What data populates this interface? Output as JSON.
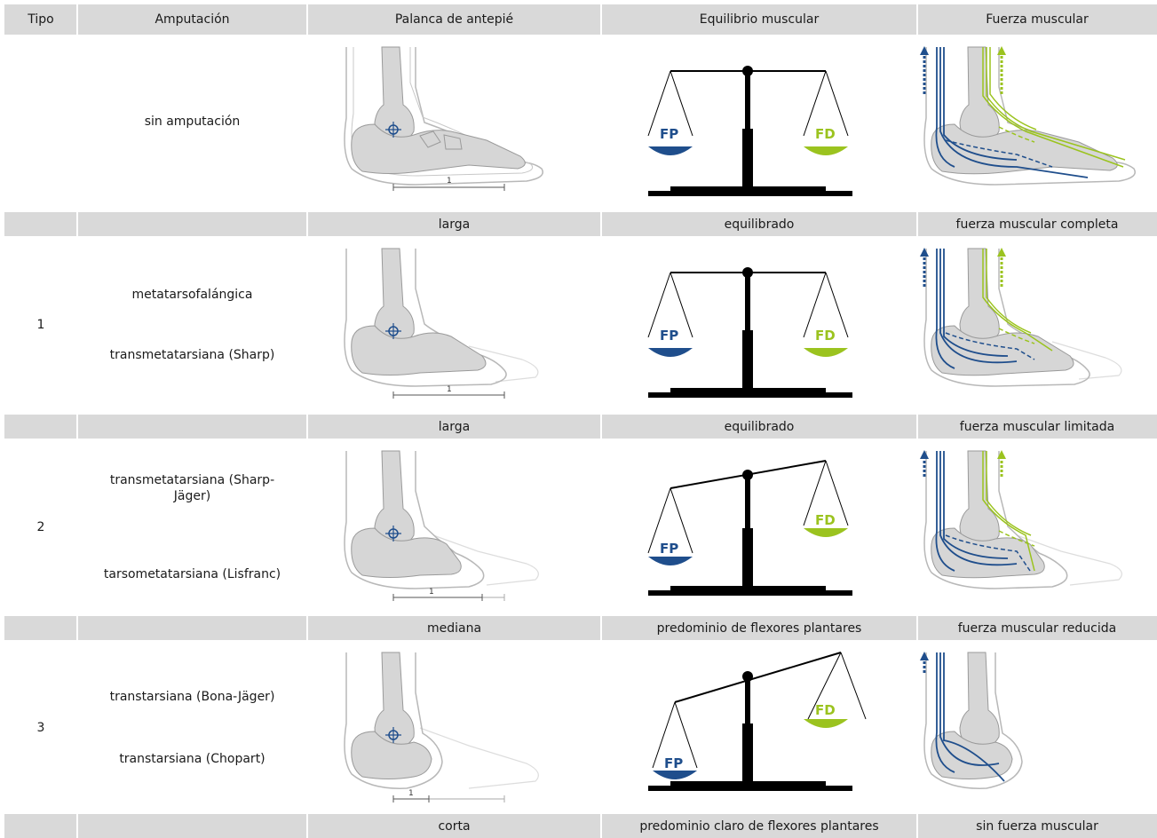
{
  "headers": [
    "Tipo",
    "Amputación",
    "Palanca de antepié",
    "Equilibrio muscular",
    "Fuerza muscular"
  ],
  "rows": [
    {
      "tipo": "",
      "amputacion": [
        "sin amputación"
      ],
      "palanca": "larga",
      "equilibrio": "equilibrado",
      "fuerza": "fuerza muscular completa",
      "fp_label": "FP",
      "fd_label": "FD",
      "scale_label": "1"
    },
    {
      "tipo": "1",
      "amputacion": [
        "metatarsofalángica",
        "transmetatarsiana (Sharp)"
      ],
      "palanca": "larga",
      "equilibrio": "equilibrado",
      "fuerza": "fuerza muscular limitada",
      "fp_label": "FP",
      "fd_label": "FD",
      "scale_label": "1"
    },
    {
      "tipo": "2",
      "amputacion": [
        "transmetatarsiana (Sharp-Jäger)",
        "tarsometatarsiana (Lisfranc)"
      ],
      "palanca": "mediana",
      "equilibrio": "predominio de flexores plantares",
      "fuerza": "fuerza muscular reducida",
      "fp_label": "FP",
      "fd_label": "FD",
      "scale_label": "1"
    },
    {
      "tipo": "3",
      "amputacion": [
        "transtarsiana (Bona-Jäger)",
        "transtarsiana (Chopart)"
      ],
      "palanca": "corta",
      "equilibrio": "predominio claro de flexores plantares",
      "fuerza": "sin fuerza muscular",
      "fp_label": "FP",
      "fd_label": "FD",
      "scale_label": "1"
    }
  ],
  "colors": {
    "header_bg": "#d9d9d9",
    "flexor_plantar": "#1f4e8c",
    "flexor_dorsal": "#9bc31f",
    "bone": "#d6d6d6",
    "outline": "#9a9a9a"
  }
}
